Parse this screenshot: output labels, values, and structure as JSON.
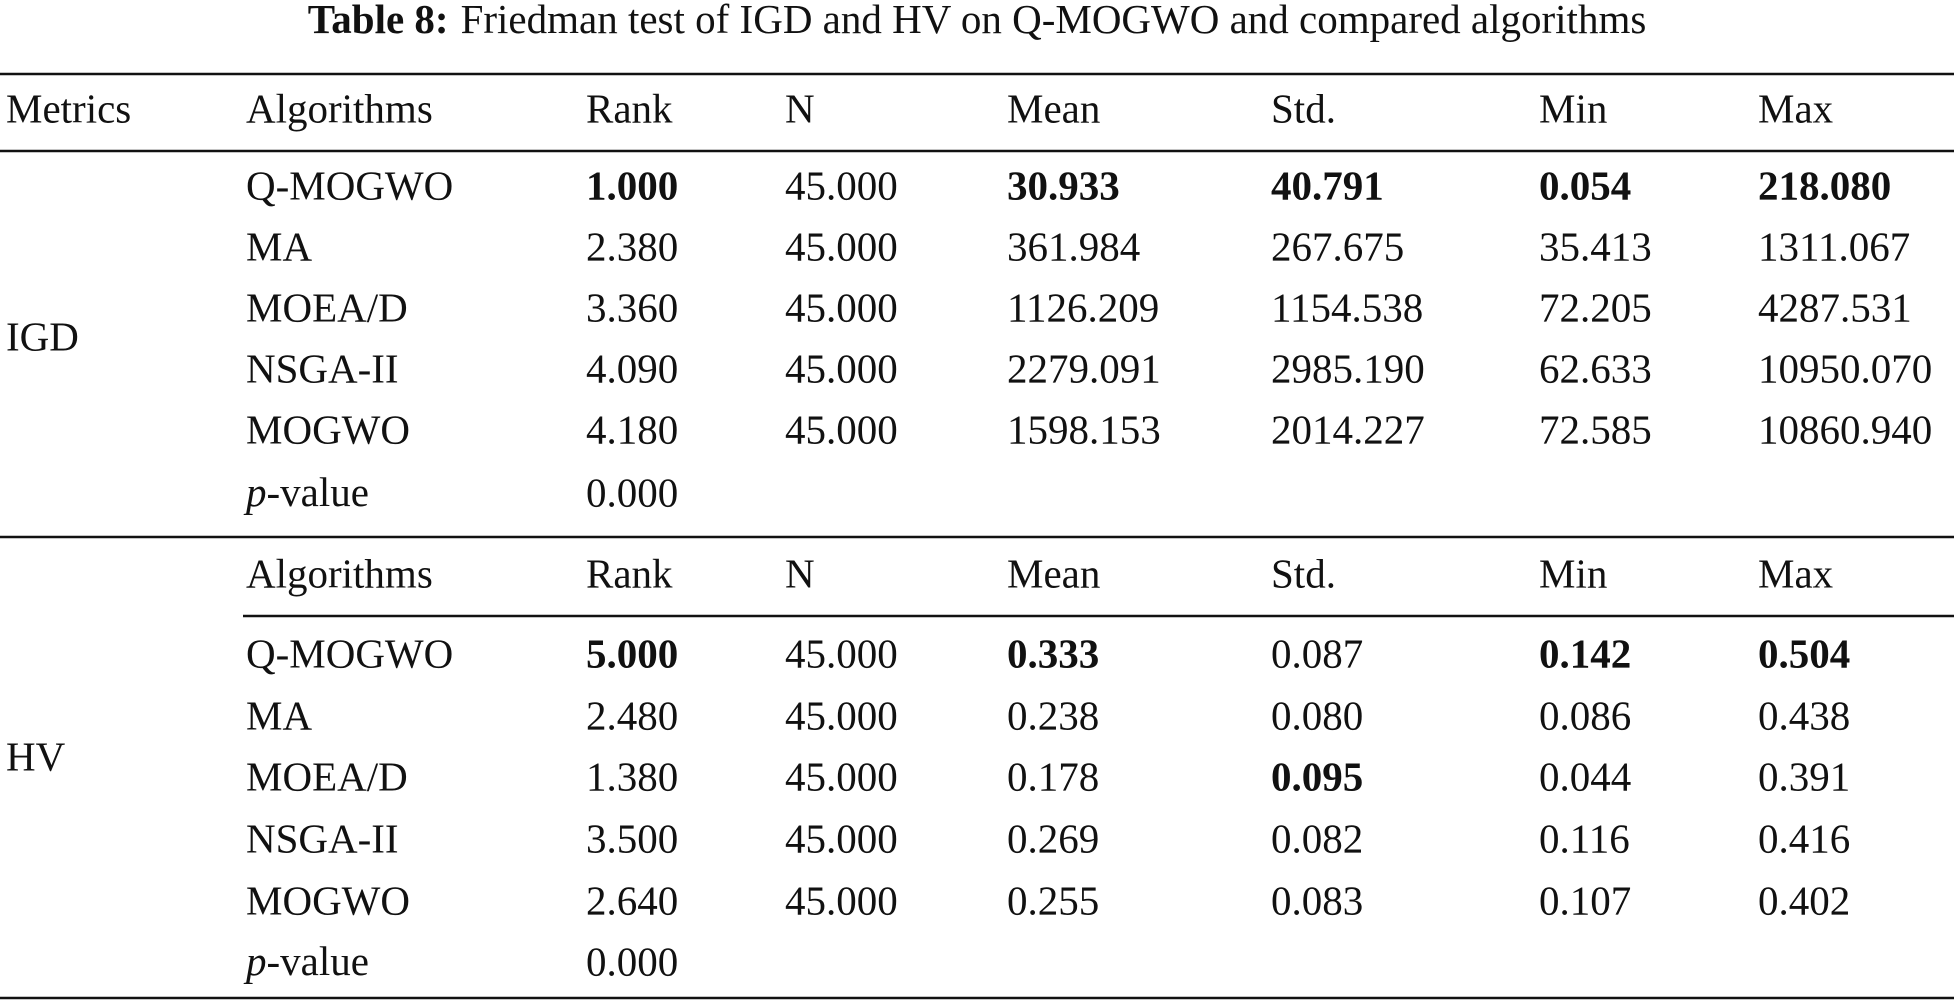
{
  "caption": {
    "label": "Table 8:",
    "text": "Friedman test of IGD and HV on Q-MOGWO and compared algorithms"
  },
  "header": [
    "Metrics",
    "Algorithms",
    "Rank",
    "N",
    "Mean",
    "Std.",
    "Min",
    "Max"
  ],
  "groups": [
    {
      "metric": "IGD",
      "rows": [
        [
          {
            "text": "Q-MOGWO"
          },
          {
            "text": "1.000",
            "bold": true
          },
          {
            "text": "45.000"
          },
          {
            "text": "30.933",
            "bold": true
          },
          {
            "text": "40.791",
            "bold": true
          },
          {
            "text": "0.054",
            "bold": true
          },
          {
            "text": "218.080",
            "bold": true
          }
        ],
        [
          {
            "text": "MA"
          },
          {
            "text": "2.380"
          },
          {
            "text": "45.000"
          },
          {
            "text": "361.984"
          },
          {
            "text": "267.675"
          },
          {
            "text": "35.413"
          },
          {
            "text": "1311.067"
          }
        ],
        [
          {
            "text": "MOEA/D"
          },
          {
            "text": "3.360"
          },
          {
            "text": "45.000"
          },
          {
            "text": "1126.209"
          },
          {
            "text": "1154.538"
          },
          {
            "text": "72.205"
          },
          {
            "text": "4287.531"
          }
        ],
        [
          {
            "text": "NSGA-II"
          },
          {
            "text": "4.090"
          },
          {
            "text": "45.000"
          },
          {
            "text": "2279.091"
          },
          {
            "text": "2985.190"
          },
          {
            "text": "62.633"
          },
          {
            "text": "10950.070"
          }
        ],
        [
          {
            "text": "MOGWO"
          },
          {
            "text": "4.180"
          },
          {
            "text": "45.000"
          },
          {
            "text": "1598.153"
          },
          {
            "text": "2014.227"
          },
          {
            "text": "72.585"
          },
          {
            "text": "10860.940"
          }
        ]
      ],
      "pvalue": {
        "italic": "p",
        "label": "-value",
        "value": "0.000"
      }
    },
    {
      "metric": "HV",
      "subheader": [
        "Algorithms",
        "Rank",
        "N",
        "Mean",
        "Std.",
        "Min",
        "Max"
      ],
      "rows": [
        [
          {
            "text": "Q-MOGWO"
          },
          {
            "text": "5.000",
            "bold": true
          },
          {
            "text": "45.000"
          },
          {
            "text": "0.333",
            "bold": true
          },
          {
            "text": "0.087"
          },
          {
            "text": "0.142",
            "bold": true
          },
          {
            "text": "0.504",
            "bold": true
          }
        ],
        [
          {
            "text": "MA"
          },
          {
            "text": "2.480"
          },
          {
            "text": "45.000"
          },
          {
            "text": "0.238"
          },
          {
            "text": "0.080"
          },
          {
            "text": "0.086"
          },
          {
            "text": "0.438"
          }
        ],
        [
          {
            "text": "MOEA/D"
          },
          {
            "text": "1.380"
          },
          {
            "text": "45.000"
          },
          {
            "text": "0.178"
          },
          {
            "text": "0.095",
            "bold": true
          },
          {
            "text": "0.044"
          },
          {
            "text": "0.391"
          }
        ],
        [
          {
            "text": "NSGA-II"
          },
          {
            "text": "3.500"
          },
          {
            "text": "45.000"
          },
          {
            "text": "0.269"
          },
          {
            "text": "0.082"
          },
          {
            "text": "0.116"
          },
          {
            "text": "0.416"
          }
        ],
        [
          {
            "text": "MOGWO"
          },
          {
            "text": "2.640"
          },
          {
            "text": "45.000"
          },
          {
            "text": "0.255"
          },
          {
            "text": "0.083"
          },
          {
            "text": "0.107"
          },
          {
            "text": "0.402"
          }
        ]
      ],
      "pvalue": {
        "italic": "p",
        "label": "-value",
        "value": "0.000"
      }
    }
  ]
}
